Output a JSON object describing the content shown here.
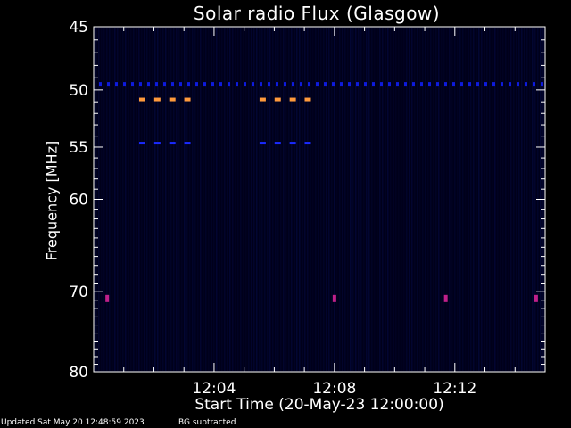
{
  "page": {
    "footer_updated": "Updated Sat May 20 12:48:59 2023",
    "footer_bg": "BG subtracted"
  },
  "chart_data": {
    "type": "heatmap",
    "title": "Solar radio Flux (Glasgow)",
    "xlabel": "Start Time (20-May-23 12:00:00)",
    "ylabel": "Frequency [MHz]",
    "x_range_minutes": [
      0,
      15
    ],
    "y_range_mhz": [
      45,
      80
    ],
    "y_scale": "log",
    "y_ticks": [
      {
        "value": 45,
        "label": "45"
      },
      {
        "value": 50,
        "label": "50"
      },
      {
        "value": 55,
        "label": "55"
      },
      {
        "value": 60,
        "label": "60"
      },
      {
        "value": 70,
        "label": "70"
      },
      {
        "value": 80,
        "label": "80"
      }
    ],
    "x_ticks": [
      {
        "value": 4,
        "label": "12:04"
      },
      {
        "value": 8,
        "label": "12:08"
      },
      {
        "value": 12,
        "label": "12:12"
      }
    ],
    "background_color": "#00001a",
    "features": {
      "orange_dash_rows": [
        {
          "freq_mhz": 50.8,
          "times_min": [
            1.6,
            2.1,
            2.6,
            3.1,
            5.6,
            6.1,
            6.6,
            7.1
          ],
          "color": "#ff9a3c"
        }
      ],
      "blue_dash_rows": [
        {
          "freq_mhz": 54.6,
          "times_min": [
            1.6,
            2.1,
            2.6,
            3.1,
            5.6,
            6.1,
            6.6,
            7.1
          ],
          "color": "#1a2aff"
        }
      ],
      "blue_band": {
        "freq_mhz": 49.5,
        "color": "#1020ff"
      },
      "magenta_marks": [
        {
          "time_min": 0.45,
          "freq_mhz": 70.8
        },
        {
          "time_min": 8.0,
          "freq_mhz": 70.8
        },
        {
          "time_min": 11.7,
          "freq_mhz": 70.8
        },
        {
          "time_min": 14.7,
          "freq_mhz": 70.8
        }
      ],
      "magenta_color": "#c0208a"
    }
  }
}
